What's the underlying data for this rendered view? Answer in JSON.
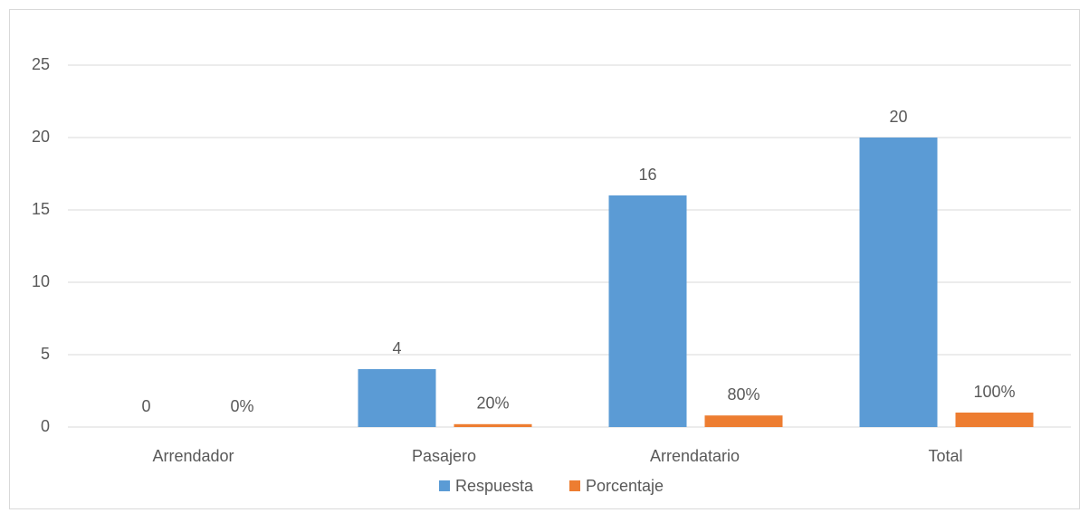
{
  "chart_data": {
    "type": "bar",
    "categories": [
      "Arrendador",
      "Pasajero",
      "Arrendatario",
      "Total"
    ],
    "series": [
      {
        "name": "Respuesta",
        "color": "#5b9bd5",
        "values": [
          0,
          4,
          16,
          20
        ],
        "value_labels": [
          "0",
          "4",
          "16",
          "20"
        ]
      },
      {
        "name": "Porcentaje",
        "color": "#ed7d31",
        "values": [
          0,
          0.2,
          0.8,
          1
        ],
        "value_labels": [
          "0%",
          "20%",
          "80%",
          "100%"
        ]
      }
    ],
    "ylim": [
      0,
      25
    ],
    "yticks": [
      0,
      5,
      10,
      15,
      20,
      25
    ],
    "grid": true,
    "legend": "bottom"
  }
}
